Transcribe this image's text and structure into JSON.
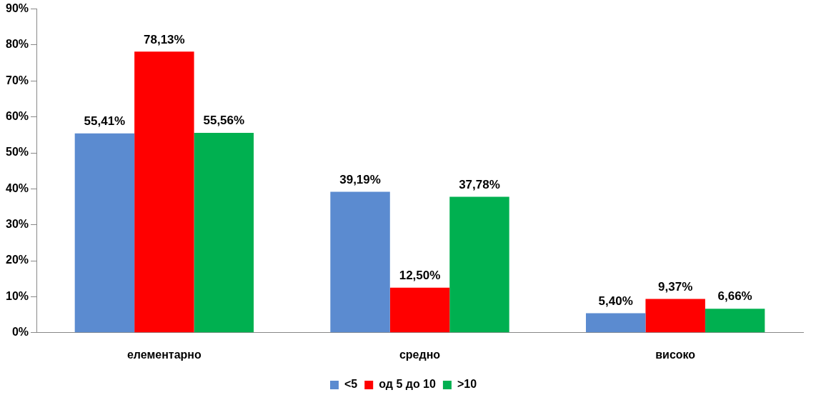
{
  "chart_data": {
    "type": "bar",
    "categories": [
      "елементарно",
      "средно",
      "високо"
    ],
    "series": [
      {
        "name": "<5",
        "color": "#5b8bd0",
        "values": [
          55.41,
          39.19,
          5.4
        ],
        "value_labels": [
          "55,41%",
          "39,19%",
          "5,40%"
        ]
      },
      {
        "name": "од 5 до 10",
        "color": "#ff0000",
        "values": [
          78.13,
          12.5,
          9.37
        ],
        "value_labels": [
          "78,13%",
          "12,50%",
          "9,37%"
        ]
      },
      {
        "name": ">10",
        "color": "#00b050",
        "values": [
          55.56,
          37.78,
          6.66
        ],
        "value_labels": [
          "55,56%",
          "37,78%",
          "6,66%"
        ]
      }
    ],
    "ylim": [
      0,
      90
    ],
    "yticks": [
      {
        "value": 0,
        "label": "0%"
      },
      {
        "value": 10,
        "label": "10%"
      },
      {
        "value": 20,
        "label": "20%"
      },
      {
        "value": 30,
        "label": "30%"
      },
      {
        "value": 40,
        "label": "40%"
      },
      {
        "value": 50,
        "label": "50%"
      },
      {
        "value": 60,
        "label": "60%"
      },
      {
        "value": 70,
        "label": "70%"
      },
      {
        "value": 80,
        "label": "80%"
      },
      {
        "value": 90,
        "label": "90%"
      }
    ],
    "grid": false,
    "legend": "bottom"
  }
}
